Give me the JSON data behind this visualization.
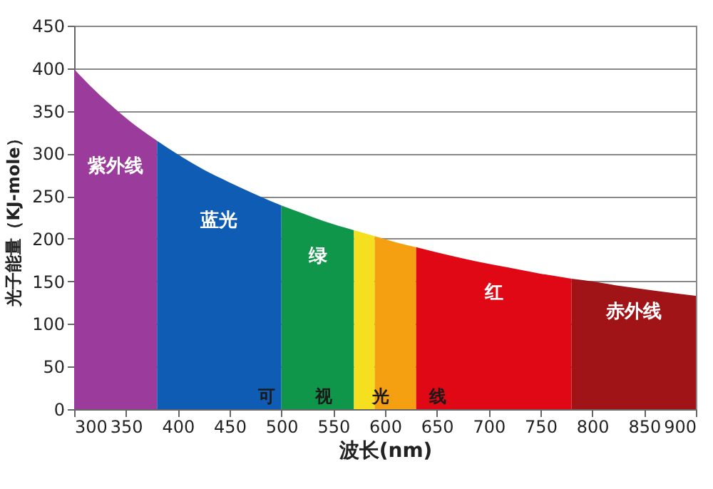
{
  "chart_data": {
    "type": "area",
    "xlabel": "波长(nm)",
    "ylabel": "光子能量（KJ-mole）",
    "xlim": [
      300,
      900
    ],
    "xticks": [
      300,
      350,
      400,
      450,
      500,
      550,
      600,
      650,
      700,
      750,
      800,
      850,
      900
    ],
    "ylim": [
      0,
      450
    ],
    "yticks": [
      0,
      50,
      100,
      150,
      200,
      250,
      300,
      350,
      400,
      450
    ],
    "grid": "y",
    "series": [
      {
        "name": "紫外线",
        "color": "#9b3b9b",
        "x": [
          300,
          320,
          340,
          360,
          380
        ],
        "values": [
          399,
          374,
          352,
          332,
          315
        ]
      },
      {
        "name": "蓝光",
        "color": "#0f5cb4",
        "x": [
          380,
          400,
          425,
          450,
          475,
          500
        ],
        "values": [
          315,
          299,
          281,
          266,
          252,
          239
        ]
      },
      {
        "name": "绿",
        "color": "#10964a",
        "x": [
          500,
          520,
          540,
          570
        ],
        "values": [
          239,
          230,
          221,
          210
        ]
      },
      {
        "color": "#f5e020",
        "x": [
          570,
          590
        ],
        "values": [
          210,
          203
        ]
      },
      {
        "color": "#f5a010",
        "x": [
          590,
          610,
          630
        ],
        "values": [
          203,
          196,
          190
        ]
      },
      {
        "name": "红",
        "color": "#e00814",
        "x": [
          630,
          660,
          690,
          720,
          750,
          780
        ],
        "values": [
          190,
          181,
          173,
          166,
          159,
          153
        ]
      },
      {
        "name": "赤外线",
        "color": "#a01418",
        "x": [
          780,
          800,
          830,
          860,
          900
        ],
        "values": [
          153,
          150,
          144,
          139,
          133
        ]
      }
    ],
    "annotations": [
      "可视光线"
    ]
  }
}
